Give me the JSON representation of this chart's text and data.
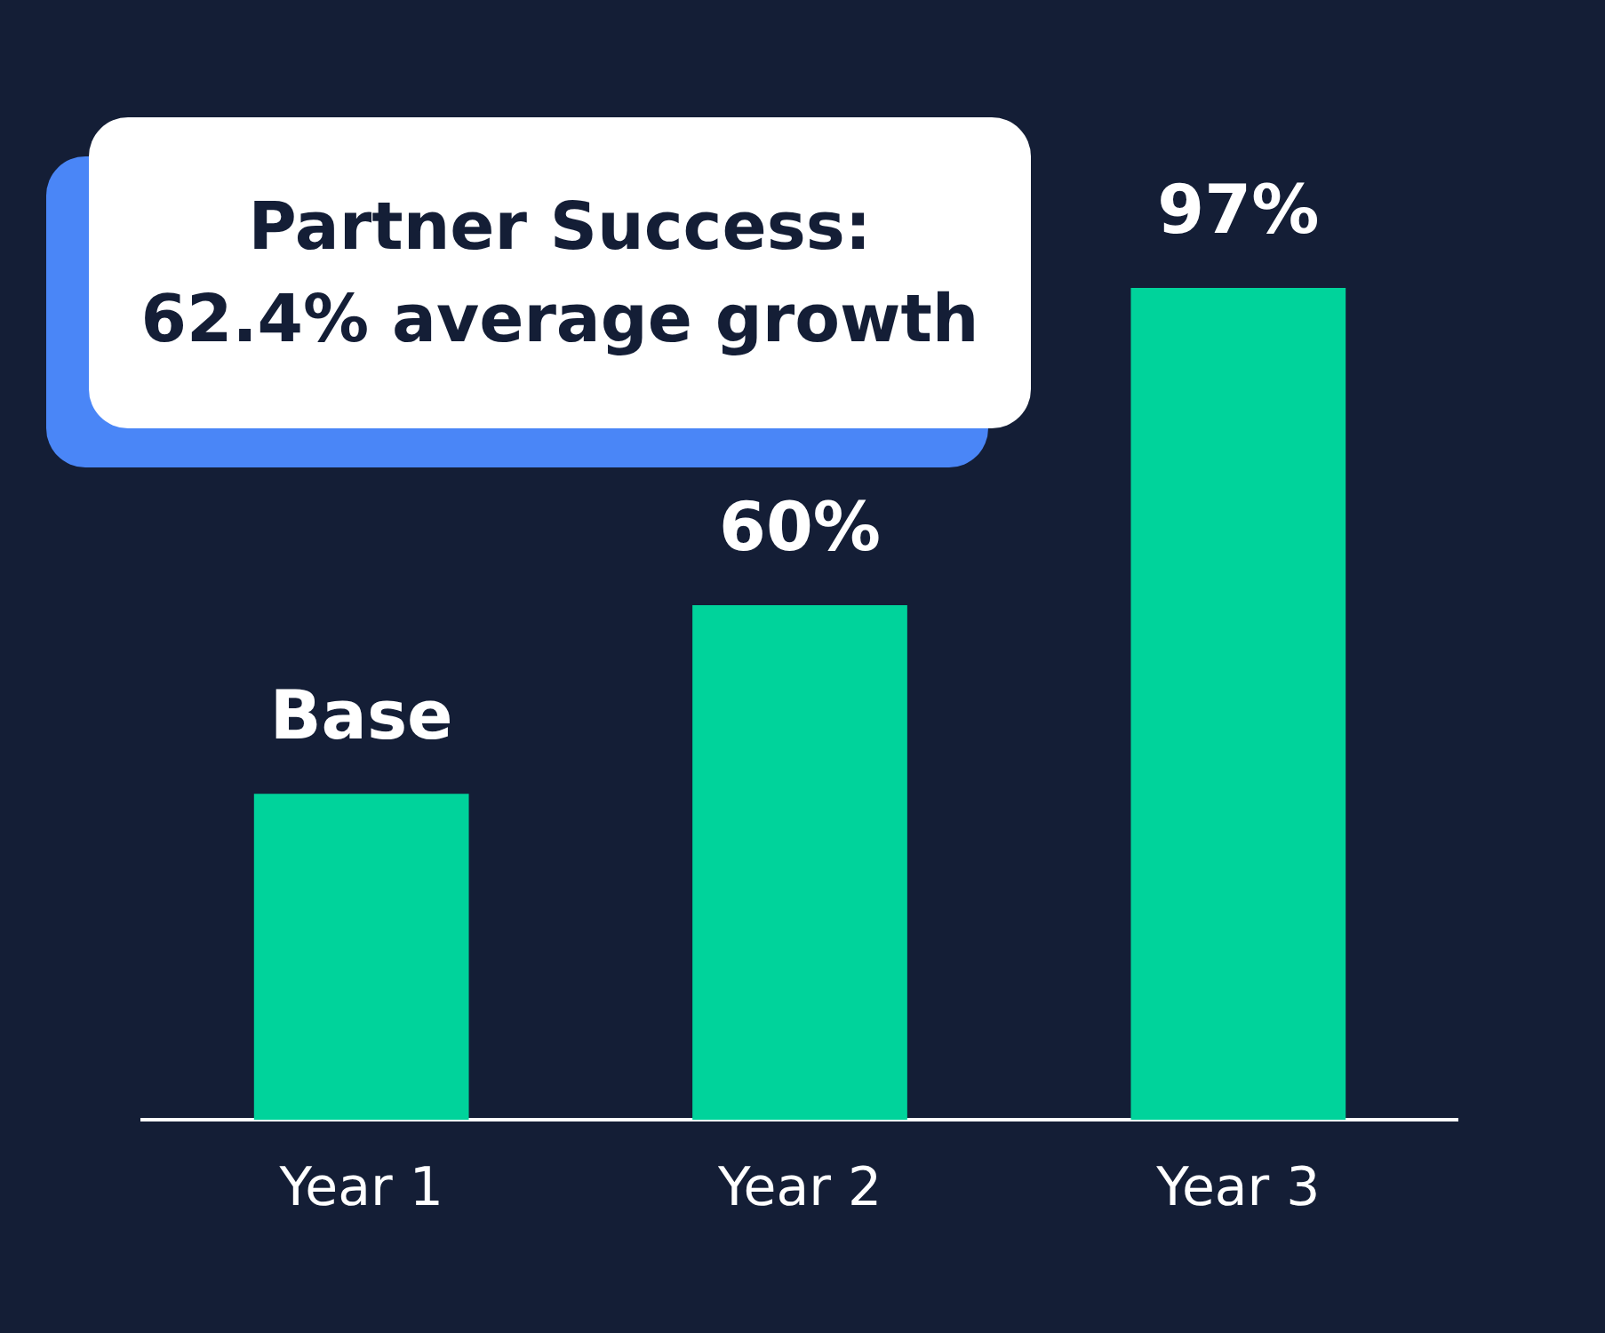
{
  "chart_data": {
    "type": "bar",
    "title": "Partner Success:\n62.4% average growth",
    "categories": [
      "Year 1",
      "Year 2",
      "Year 3"
    ],
    "values": [
      38,
      60,
      97
    ],
    "value_labels": [
      "Base",
      "60%",
      "97%"
    ],
    "color": "#00d39b",
    "tick_labels": "x",
    "grid": false,
    "legend": false
  }
}
